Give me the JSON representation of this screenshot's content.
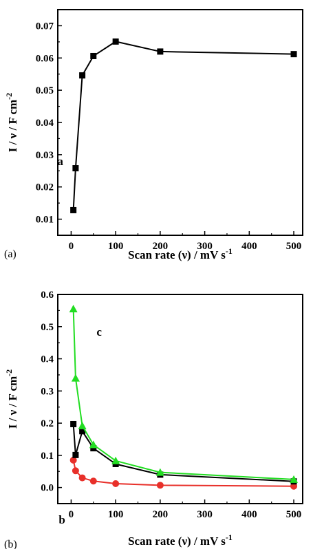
{
  "chart_data": [
    {
      "type": "line",
      "panel_label": "(a)",
      "title": "",
      "xlabel": "Scan rate (ν) / mV s",
      "xlabel_sup": "-1",
      "ylabel": "I / ν / F cm",
      "ylabel_sup": "-2",
      "xlim": [
        -30,
        520
      ],
      "ylim": [
        0.005,
        0.075
      ],
      "xticks": [
        0,
        100,
        200,
        300,
        400,
        500
      ],
      "yticks": [
        0.01,
        0.02,
        0.03,
        0.04,
        0.05,
        0.06,
        0.07
      ],
      "grid": false,
      "series": [
        {
          "name": "",
          "color": "#000000",
          "marker": "square",
          "x": [
            5,
            10,
            25,
            50,
            100,
            200,
            500
          ],
          "y": [
            0.0128,
            0.0258,
            0.0546,
            0.0606,
            0.0651,
            0.062,
            0.0612
          ]
        }
      ]
    },
    {
      "type": "line",
      "panel_label": "(b)",
      "title": "",
      "xlabel": "Scan rate (ν) / mV s",
      "xlabel_sup": "-1",
      "ylabel": "I / ν / F cm",
      "ylabel_sup": "-2",
      "xlim": [
        -30,
        520
      ],
      "ylim": [
        -0.05,
        0.6
      ],
      "xticks": [
        0,
        100,
        200,
        300,
        400,
        500
      ],
      "yticks": [
        0.0,
        0.1,
        0.2,
        0.3,
        0.4,
        0.5,
        0.6
      ],
      "grid": false,
      "series": [
        {
          "name": "a",
          "color": "#000000",
          "marker": "square",
          "x": [
            5,
            10,
            25,
            50,
            100,
            200,
            500
          ],
          "y": [
            0.197,
            0.101,
            0.175,
            0.122,
            0.073,
            0.04,
            0.019
          ]
        },
        {
          "name": "b",
          "color": "#e8302a",
          "marker": "circle",
          "x": [
            5,
            10,
            25,
            50,
            100,
            200,
            500
          ],
          "y": [
            0.085,
            0.052,
            0.03,
            0.02,
            0.012,
            0.007,
            0.004
          ]
        },
        {
          "name": "c",
          "color": "#22dd22",
          "marker": "triangle",
          "x": [
            5,
            10,
            25,
            50,
            100,
            200,
            500
          ],
          "y": [
            0.555,
            0.34,
            0.192,
            0.133,
            0.083,
            0.047,
            0.025
          ]
        }
      ]
    }
  ]
}
